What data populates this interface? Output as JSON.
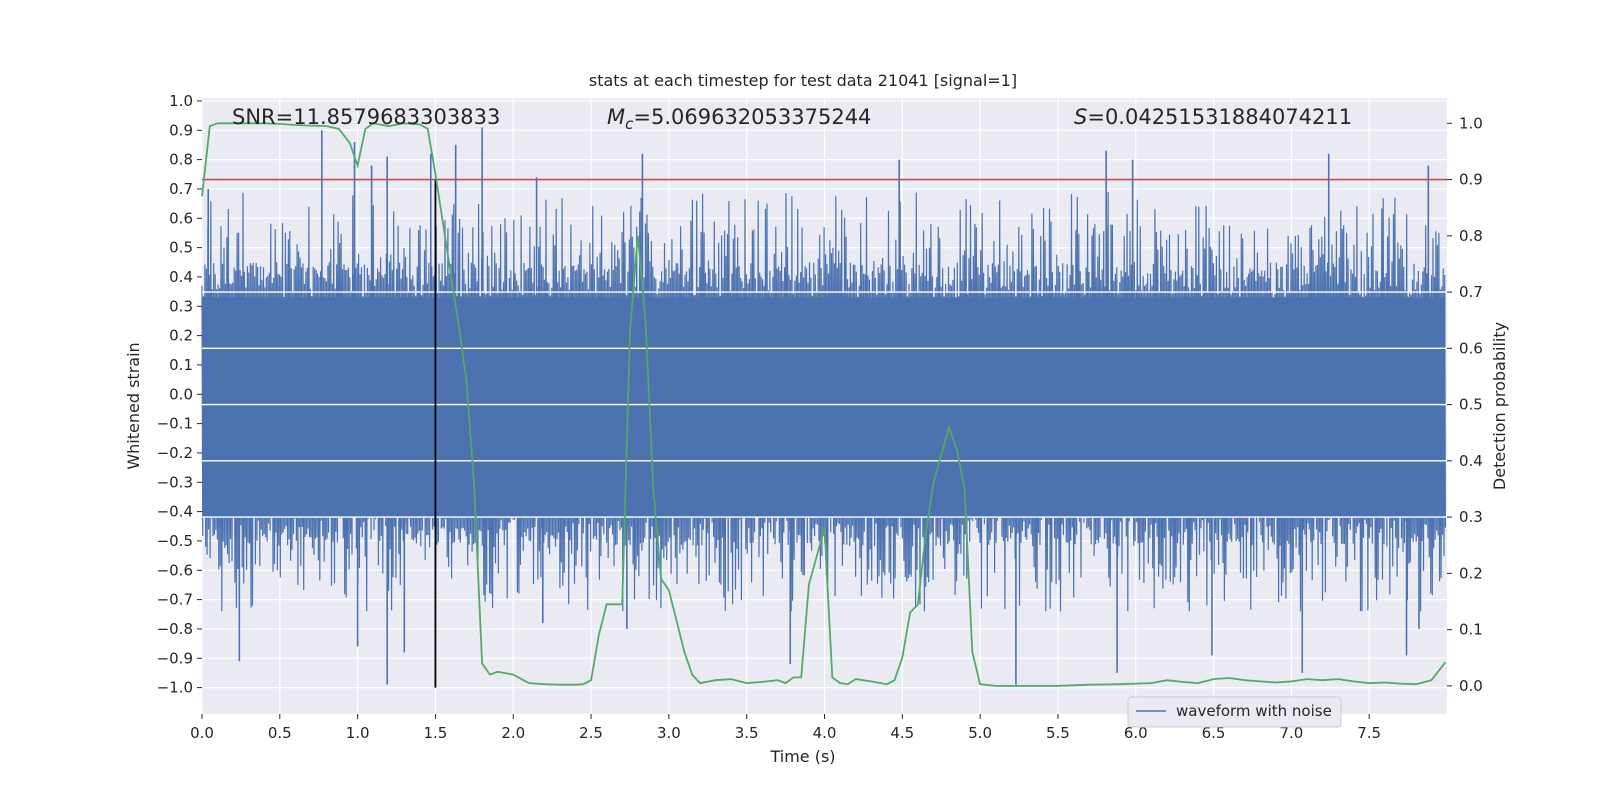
{
  "chart_data": {
    "type": "line",
    "title": "stats at each timestep for test data 21041 [signal=1]",
    "xlabel": "Time (s)",
    "ylabel_left": "Whitened strain",
    "ylabel_right": "Detection probability",
    "xlim": [
      0.0,
      8.0
    ],
    "ylim_left": [
      -1.09,
      1.01
    ],
    "ylim_right": [
      -0.05,
      1.045
    ],
    "x_ticks": [
      0.0,
      0.5,
      1.0,
      1.5,
      2.0,
      2.5,
      3.0,
      3.5,
      4.0,
      4.5,
      5.0,
      5.5,
      6.0,
      6.5,
      7.0,
      7.5
    ],
    "x_tick_labels": [
      "0.0",
      "0.5",
      "1.0",
      "1.5",
      "2.0",
      "2.5",
      "3.0",
      "3.5",
      "4.0",
      "4.5",
      "5.0",
      "5.5",
      "6.0",
      "6.5",
      "7.0",
      "7.5"
    ],
    "y_left_ticks": [
      1.0,
      0.9,
      0.8,
      0.7,
      0.6,
      0.5,
      0.4,
      0.3,
      0.2,
      0.1,
      0.0,
      -0.1,
      -0.2,
      -0.3,
      -0.4,
      -0.5,
      -0.6,
      -0.7,
      -0.8,
      -0.9,
      -1.0
    ],
    "y_left_tick_labels": [
      "1.0",
      "0.9",
      "0.8",
      "0.7",
      "0.6",
      "0.5",
      "0.4",
      "0.3",
      "0.2",
      "0.1",
      "0.0",
      "−0.1",
      "−0.2",
      "−0.3",
      "−0.4",
      "−0.5",
      "−0.6",
      "−0.7",
      "−0.8",
      "−0.9",
      "−1.0"
    ],
    "y_right_ticks": [
      1.0,
      0.9,
      0.8,
      0.7,
      0.6,
      0.5,
      0.4,
      0.3,
      0.2,
      0.1,
      0.0
    ],
    "y_right_tick_labels": [
      "1.0",
      "0.9",
      "0.8",
      "0.7",
      "0.6",
      "0.5",
      "0.4",
      "0.3",
      "0.2",
      "0.1",
      "0.0"
    ],
    "annotations": {
      "snr": "SNR=11.8579683303833",
      "mc_prefix": "M",
      "mc_sub": "c",
      "mc_value": "=5.069632053375244",
      "s_prefix": "S",
      "s_value": "=0.04251531884074211"
    },
    "threshold_line": {
      "axis": "right",
      "y": 0.9,
      "color": "#c44e52"
    },
    "event_marker": {
      "x": 1.5,
      "y_from": -1.0,
      "y_to": 0.9,
      "color": "#000000"
    },
    "series": [
      {
        "name": "waveform with noise",
        "axis": "left",
        "color": "#4c72b0",
        "style": "dense noise envelope",
        "x_range": [
          0.0,
          7.99
        ],
        "core_band": [
          -0.42,
          0.33
        ],
        "peaks_positive": [
          [
            0.04,
            0.7
          ],
          [
            0.77,
            0.9
          ],
          [
            0.98,
            0.86
          ],
          [
            1.09,
            0.78
          ],
          [
            1.19,
            0.81
          ],
          [
            1.47,
            0.82
          ],
          [
            1.63,
            0.85
          ],
          [
            1.8,
            0.91
          ],
          [
            2.15,
            0.74
          ],
          [
            2.83,
            0.82
          ],
          [
            4.48,
            0.8
          ],
          [
            5.81,
            0.83
          ],
          [
            5.98,
            0.8
          ],
          [
            7.24,
            0.82
          ],
          [
            7.88,
            0.78
          ]
        ],
        "peaks_negative": [
          [
            0.24,
            -0.91
          ],
          [
            1.0,
            -0.86
          ],
          [
            1.19,
            -0.99
          ],
          [
            1.3,
            -0.88
          ],
          [
            2.19,
            -0.78
          ],
          [
            2.73,
            -0.8
          ],
          [
            3.78,
            -0.92
          ],
          [
            5.23,
            -0.99
          ],
          [
            5.88,
            -0.95
          ],
          [
            6.49,
            -0.89
          ],
          [
            7.07,
            -0.95
          ],
          [
            7.74,
            -0.89
          ],
          [
            7.82,
            -0.8
          ]
        ]
      },
      {
        "name": "detection probability",
        "axis": "right",
        "color": "#55a868",
        "x": [
          0.0,
          0.05,
          0.1,
          0.2,
          0.3,
          0.4,
          0.5,
          0.6,
          0.7,
          0.8,
          0.88,
          0.95,
          1.0,
          1.05,
          1.1,
          1.2,
          1.3,
          1.4,
          1.45,
          1.5,
          1.55,
          1.6,
          1.65,
          1.7,
          1.75,
          1.8,
          1.85,
          1.9,
          2.0,
          2.1,
          2.2,
          2.3,
          2.4,
          2.45,
          2.5,
          2.55,
          2.6,
          2.7,
          2.75,
          2.8,
          2.85,
          2.9,
          2.95,
          3.0,
          3.1,
          3.15,
          3.2,
          3.3,
          3.4,
          3.5,
          3.6,
          3.7,
          3.75,
          3.8,
          3.85,
          3.9,
          4.0,
          4.05,
          4.1,
          4.15,
          4.2,
          4.3,
          4.4,
          4.45,
          4.5,
          4.55,
          4.6,
          4.65,
          4.7,
          4.75,
          4.8,
          4.85,
          4.9,
          4.95,
          5.0,
          5.1,
          5.2,
          5.3,
          5.5,
          5.7,
          5.9,
          6.1,
          6.2,
          6.3,
          6.4,
          6.5,
          6.6,
          6.7,
          6.8,
          6.9,
          7.0,
          7.1,
          7.2,
          7.3,
          7.4,
          7.5,
          7.6,
          7.7,
          7.8,
          7.9,
          7.99
        ],
        "y": [
          0.87,
          0.995,
          1.0,
          1.0,
          1.0,
          1.0,
          0.999,
          0.997,
          0.996,
          0.995,
          0.99,
          0.965,
          0.925,
          0.99,
          1.0,
          0.995,
          1.0,
          0.998,
          0.99,
          0.91,
          0.82,
          0.73,
          0.64,
          0.54,
          0.35,
          0.04,
          0.02,
          0.025,
          0.02,
          0.005,
          0.003,
          0.002,
          0.002,
          0.003,
          0.01,
          0.09,
          0.145,
          0.145,
          0.63,
          0.8,
          0.65,
          0.35,
          0.19,
          0.17,
          0.06,
          0.02,
          0.005,
          0.01,
          0.012,
          0.005,
          0.007,
          0.01,
          0.005,
          0.015,
          0.015,
          0.18,
          0.28,
          0.015,
          0.005,
          0.003,
          0.012,
          0.008,
          0.003,
          0.01,
          0.05,
          0.13,
          0.145,
          0.27,
          0.36,
          0.41,
          0.46,
          0.42,
          0.35,
          0.06,
          0.003,
          0.0,
          0.0,
          0.0,
          0.0,
          0.002,
          0.003,
          0.005,
          0.01,
          0.007,
          0.005,
          0.012,
          0.014,
          0.01,
          0.008,
          0.006,
          0.008,
          0.012,
          0.01,
          0.012,
          0.008,
          0.005,
          0.006,
          0.004,
          0.003,
          0.01,
          0.042
        ]
      }
    ],
    "legend": {
      "location": "lower center-right",
      "entries": [
        "waveform with noise"
      ]
    },
    "grid": true,
    "style": {
      "axes_facecolor": "#eaeaf2",
      "grid_color": "#ffffff"
    }
  }
}
